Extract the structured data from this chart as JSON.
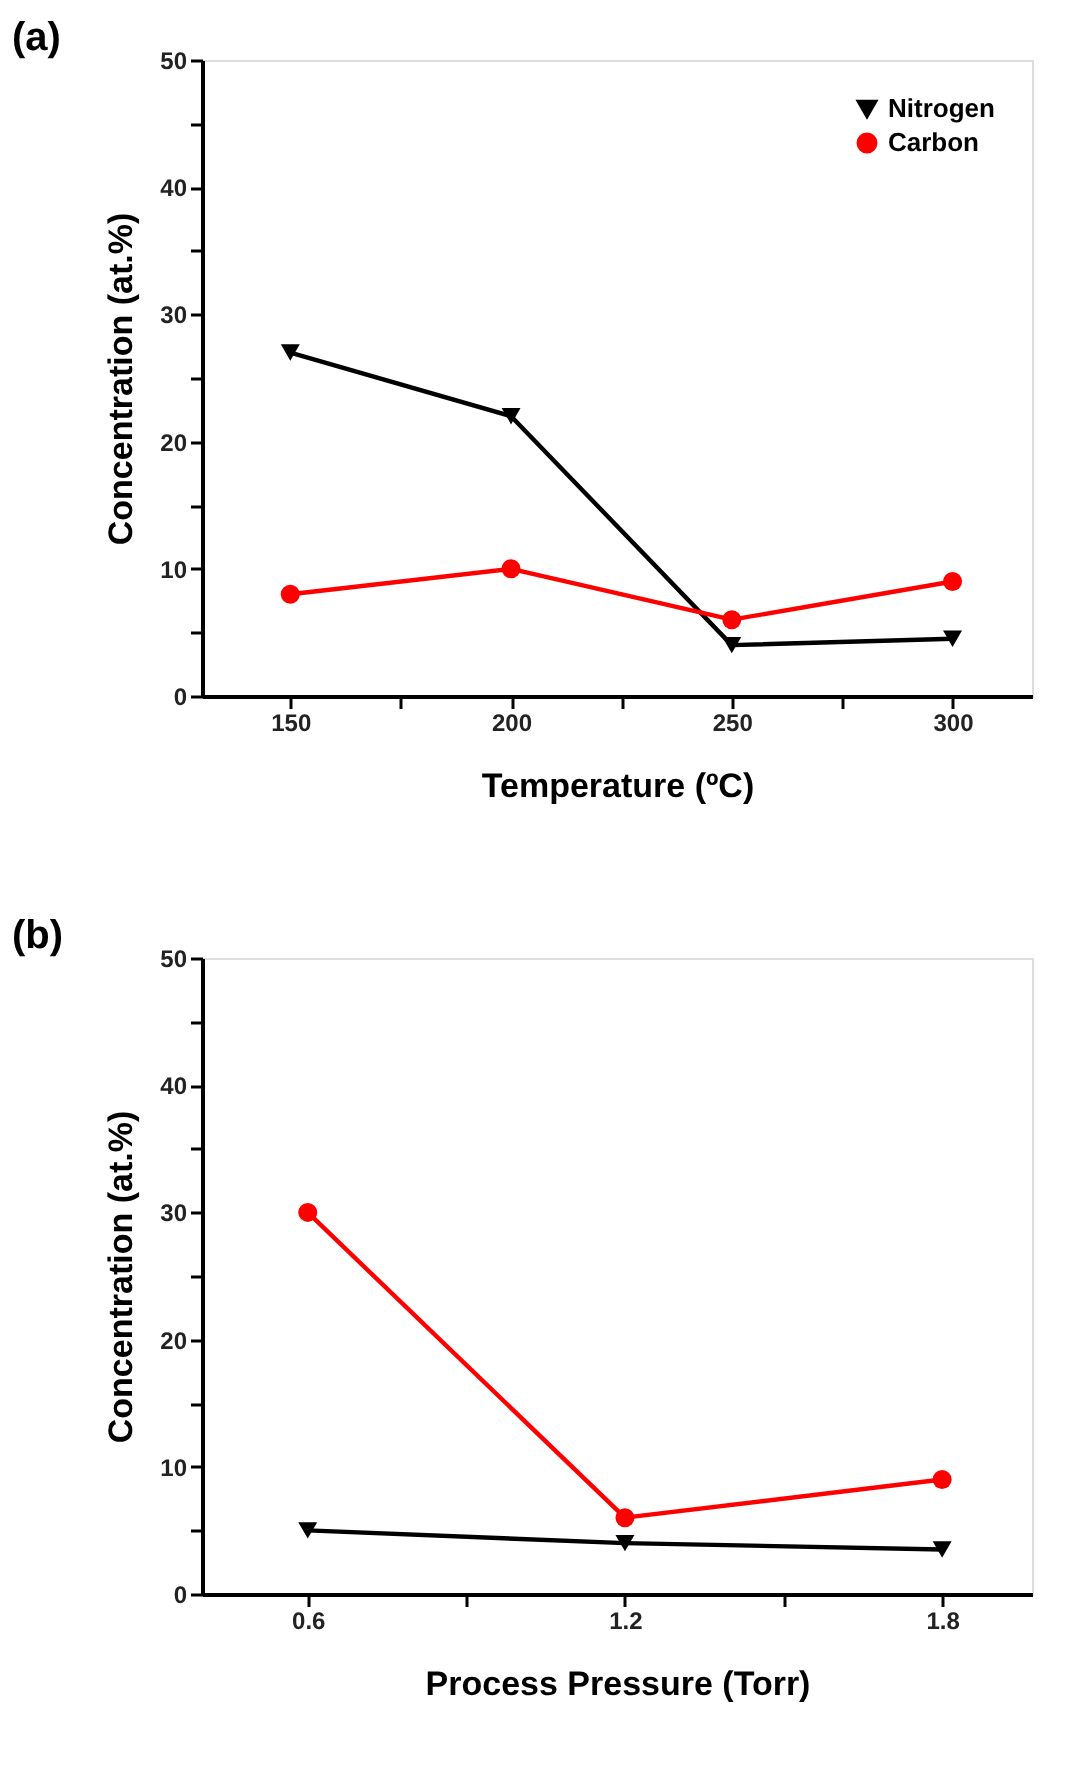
{
  "chart_data": [
    {
      "type": "line",
      "title": "(a)",
      "xlabel": "Temperature (ºC)",
      "ylabel": "Concentration (at.%)",
      "x": [
        150,
        200,
        250,
        300
      ],
      "series": [
        {
          "name": "Nitrogen",
          "color": "#000000",
          "marker": "triangle-down",
          "values": [
            27,
            22,
            4,
            4.5
          ]
        },
        {
          "name": "Carbon",
          "color": "#ff0000",
          "marker": "circle",
          "values": [
            8,
            10,
            6,
            9
          ]
        }
      ],
      "xlim": [
        130,
        318
      ],
      "xticks": [
        150,
        {
          "value": 175,
          "label": null
        },
        200,
        {
          "value": 225,
          "label": null
        },
        250,
        {
          "value": 275,
          "label": null
        },
        300
      ],
      "ylim": [
        0,
        50
      ],
      "yticks": [
        0,
        {
          "value": 5,
          "label": null
        },
        10,
        {
          "value": 15,
          "label": null
        },
        20,
        {
          "value": 25,
          "label": null
        },
        30,
        {
          "value": 35,
          "label": null
        },
        40,
        {
          "value": 45,
          "label": null
        },
        50
      ],
      "grid": false,
      "legend": "top right",
      "line_style": "solid"
    },
    {
      "type": "line",
      "title": "(b)",
      "xlabel": "Process Pressure (Torr)",
      "ylabel": "Concentration (at.%)",
      "x": [
        0.6,
        1.2,
        1.8
      ],
      "series": [
        {
          "name": "Nitrogen",
          "color": "#000000",
          "marker": "triangle-down",
          "values": [
            5,
            4,
            3.5
          ]
        },
        {
          "name": "Carbon",
          "color": "#ff0000",
          "marker": "circle",
          "values": [
            30,
            6,
            9
          ]
        }
      ],
      "xlim": [
        0.4,
        1.97
      ],
      "xticks": [
        0.6,
        {
          "value": 0.9,
          "label": null
        },
        1.2,
        {
          "value": 1.5,
          "label": null
        },
        1.8
      ],
      "ylim": [
        0,
        50
      ],
      "yticks": [
        0,
        {
          "value": 5,
          "label": null
        },
        10,
        {
          "value": 15,
          "label": null
        },
        20,
        {
          "value": 25,
          "label": null
        },
        30,
        {
          "value": 35,
          "label": null
        },
        40,
        {
          "value": 45,
          "label": null
        },
        50
      ],
      "grid": false,
      "legend": "top right",
      "line_style": "solid"
    }
  ]
}
